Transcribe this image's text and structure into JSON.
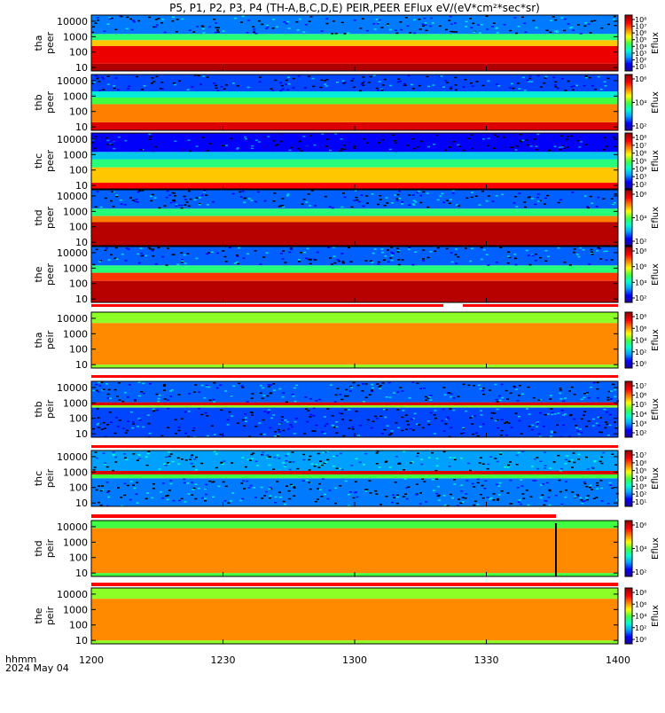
{
  "chart_data": {
    "type": "heatmap",
    "title": "P5, P1, P2, P3, P4 (TH-A,B,C,D,E) PEIR,PEER EFlux eV/(eV*cm²*sec*sr)",
    "x_tick_labels": [
      "1200",
      "1230",
      "1300",
      "1330",
      "1400"
    ],
    "x_label_line1": "hhmm",
    "x_label_line2": "2024 May 04",
    "x_range_hhmm": [
      "1200",
      "1400"
    ],
    "y_tick_labels": [
      "10",
      "100",
      "1000",
      "10000"
    ],
    "y_scale": "log",
    "y_range_eV": [
      6,
      25000
    ],
    "colorbar_label": "Eflux",
    "colormap": [
      "#2000a0",
      "#0000ff",
      "#00a0ff",
      "#00ffd0",
      "#40ff40",
      "#ffff00",
      "#ff8000",
      "#ff0000",
      "#a00000"
    ],
    "panels": [
      {
        "name": "tha peer",
        "probe": "tha",
        "species": "peer",
        "cbar_labels": [
          "10¹",
          "10²",
          "10³",
          "10⁴",
          "10⁵",
          "10⁶",
          "10⁷",
          "10⁸"
        ],
        "bands": [
          {
            "lo": 6,
            "hi": 18,
            "level": 0.98
          },
          {
            "lo": 18,
            "hi": 250,
            "level": 0.9
          },
          {
            "lo": 250,
            "hi": 600,
            "level": 0.68
          },
          {
            "lo": 600,
            "hi": 1500,
            "level": 0.45
          },
          {
            "lo": 1500,
            "hi": 25000,
            "level": 0.22,
            "noise": true
          }
        ]
      },
      {
        "name": "thb peer",
        "probe": "thb",
        "species": "peer",
        "cbar_labels": [
          "10²",
          "10⁴",
          "10⁶"
        ],
        "bands": [
          {
            "lo": 6,
            "hi": 20,
            "level": 0.92
          },
          {
            "lo": 20,
            "hi": 300,
            "level": 0.75
          },
          {
            "lo": 300,
            "hi": 800,
            "level": 0.5
          },
          {
            "lo": 800,
            "hi": 2000,
            "level": 0.35
          },
          {
            "lo": 2000,
            "hi": 25000,
            "level": 0.18,
            "noise": true
          }
        ]
      },
      {
        "name": "thc peer",
        "probe": "thc",
        "species": "peer",
        "cbar_labels": [
          "10²",
          "10³",
          "10⁴",
          "10⁵",
          "10⁶",
          "10⁷",
          "10⁸"
        ],
        "bands": [
          {
            "lo": 6,
            "hi": 15,
            "level": 0.88
          },
          {
            "lo": 15,
            "hi": 150,
            "level": 0.68
          },
          {
            "lo": 150,
            "hi": 500,
            "level": 0.45
          },
          {
            "lo": 500,
            "hi": 1500,
            "level": 0.3
          },
          {
            "lo": 1500,
            "hi": 25000,
            "level": 0.12,
            "noise": true
          }
        ]
      },
      {
        "name": "thd peer",
        "probe": "thd",
        "species": "peer",
        "cbar_labels": [
          "10²",
          "10⁴",
          "10⁶"
        ],
        "bands": [
          {
            "lo": 6,
            "hi": 200,
            "level": 0.97
          },
          {
            "lo": 200,
            "hi": 500,
            "level": 0.75
          },
          {
            "lo": 500,
            "hi": 1500,
            "level": 0.45
          },
          {
            "lo": 1500,
            "hi": 25000,
            "level": 0.2,
            "noise": true
          }
        ]
      },
      {
        "name": "the peer",
        "probe": "the",
        "species": "peer",
        "cbar_labels": [
          "10²",
          "10⁴",
          "10⁶",
          "10⁸"
        ],
        "bands": [
          {
            "lo": 6,
            "hi": 150,
            "level": 0.97
          },
          {
            "lo": 150,
            "hi": 500,
            "level": 0.82
          },
          {
            "lo": 500,
            "hi": 1500,
            "level": 0.45
          },
          {
            "lo": 1500,
            "hi": 25000,
            "level": 0.2,
            "noise": true
          }
        ]
      },
      {
        "name": "tha peir",
        "probe": "tha",
        "species": "peir",
        "cbar_labels": [
          "10⁰",
          "10²",
          "10⁴",
          "10⁶",
          "10⁸"
        ],
        "bands": [
          {
            "lo": 6,
            "hi": 10,
            "level": 0.55
          },
          {
            "lo": 10,
            "hi": 5000,
            "level": 0.74
          },
          {
            "lo": 5000,
            "hi": 25000,
            "level": 0.55
          }
        ]
      },
      {
        "name": "thb peir",
        "probe": "thb",
        "species": "peir",
        "cbar_labels": [
          "10²",
          "10³",
          "10⁴",
          "10⁵",
          "10⁶",
          "10⁷"
        ],
        "bands": [
          {
            "lo": 6,
            "hi": 500,
            "level": 0.18,
            "noise": true
          },
          {
            "lo": 500,
            "hi": 700,
            "level": 0.55
          },
          {
            "lo": 700,
            "hi": 1100,
            "level": 0.92
          },
          {
            "lo": 1100,
            "hi": 25000,
            "level": 0.2,
            "noise": true
          }
        ]
      },
      {
        "name": "thc peir",
        "probe": "thc",
        "species": "peir",
        "cbar_labels": [
          "10¹",
          "10²",
          "10³",
          "10⁴",
          "10⁵",
          "10⁶",
          "10⁷"
        ],
        "bands": [
          {
            "lo": 6,
            "hi": 400,
            "level": 0.22,
            "noise": true
          },
          {
            "lo": 400,
            "hi": 700,
            "level": 0.5
          },
          {
            "lo": 700,
            "hi": 1200,
            "level": 0.92
          },
          {
            "lo": 1200,
            "hi": 25000,
            "level": 0.25,
            "noise": true
          }
        ]
      },
      {
        "name": "thd peir",
        "probe": "thd",
        "species": "peir",
        "cbar_labels": [
          "10²",
          "10⁴",
          "10⁶"
        ],
        "bands": [
          {
            "lo": 6,
            "hi": 10,
            "level": 0.5
          },
          {
            "lo": 10,
            "hi": 8000,
            "level": 0.74
          },
          {
            "lo": 8000,
            "hi": 25000,
            "level": 0.5
          }
        ]
      },
      {
        "name": "the peir",
        "probe": "the",
        "species": "peir",
        "cbar_labels": [
          "10⁰",
          "10²",
          "10⁴",
          "10⁶",
          "10⁸"
        ],
        "bands": [
          {
            "lo": 6,
            "hi": 10,
            "level": 0.55
          },
          {
            "lo": 10,
            "hi": 5000,
            "level": 0.74
          },
          {
            "lo": 5000,
            "hi": 25000,
            "level": 0.55
          }
        ]
      }
    ]
  }
}
